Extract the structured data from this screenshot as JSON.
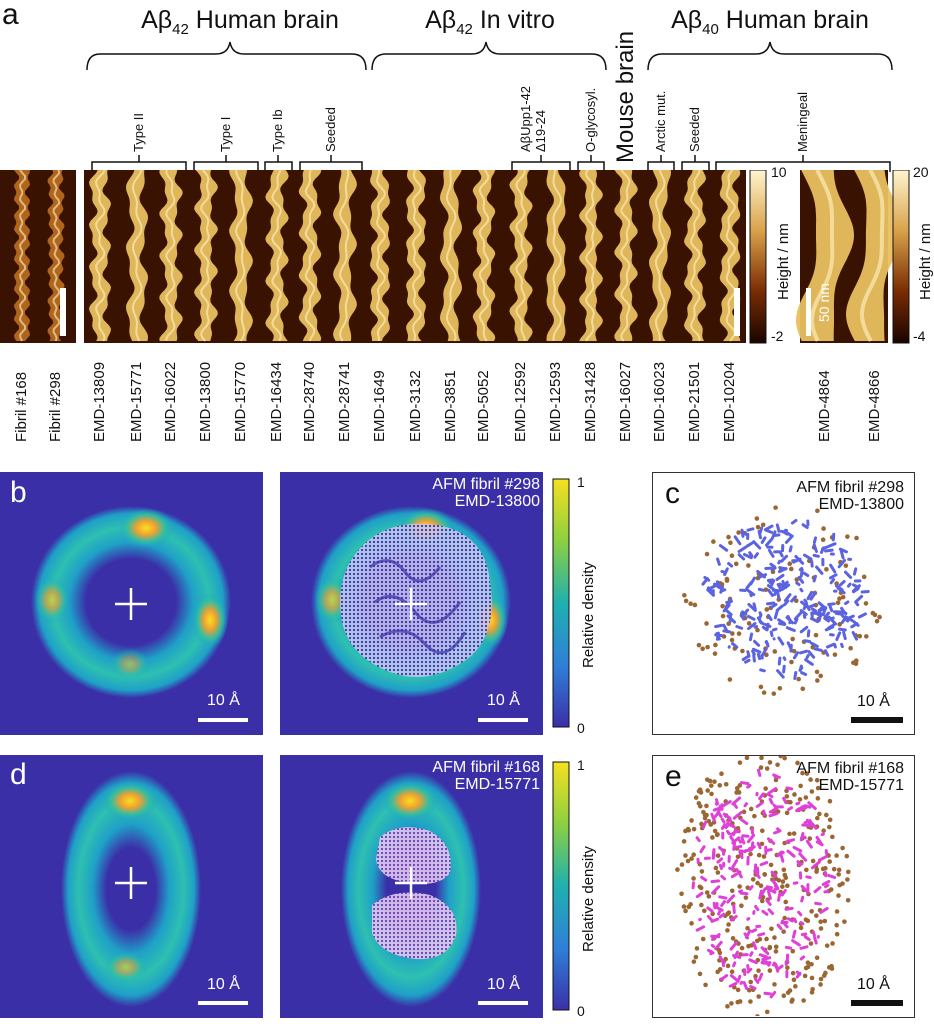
{
  "panel_letters": {
    "a": "a",
    "b": "b",
    "c": "c",
    "d": "d",
    "e": "e"
  },
  "groups": {
    "g1": {
      "pre": "Aβ",
      "sub": "42",
      "post": " Human brain"
    },
    "g2": {
      "pre": "Aβ",
      "sub": "42",
      "post": " In vitro"
    },
    "g3": "Mouse brain",
    "g4": {
      "pre": "Aβ",
      "sub": "40",
      "post": " Human brain"
    }
  },
  "subgroups": {
    "type2": "Type II",
    "type1": "Type I",
    "type1b": "Type Ib",
    "seeded1": "Seeded",
    "abupp_line1": "AβUpp1-42",
    "abupp_line2": "Δ19-24",
    "oglyc": "O-glycosyl.",
    "arctic": "Arctic mut.",
    "seeded2": "Seeded",
    "meningeal": "Meningeal"
  },
  "strip_labels": [
    "Fibril #168",
    "Fibril #298",
    "EMD-13809",
    "EMD-15771",
    "EMD-16022",
    "EMD-13800",
    "EMD-15770",
    "EMD-16434",
    "EMD-28740",
    "EMD-28741",
    "EMD-1649",
    "EMD-3132",
    "EMD-3851",
    "EMD-5052",
    "EMD-12592",
    "EMD-12593",
    "EMD-31428",
    "EMD-16027",
    "EMD-16023",
    "EMD-21501",
    "EMD-10204",
    "EMD-4864",
    "EMD-4866"
  ],
  "height_bar1": {
    "label": "Height / nm",
    "max": "10",
    "min": "-2"
  },
  "height_bar2": {
    "label": "Height / nm",
    "max": "20",
    "min": "-4"
  },
  "scale_50nm": "50 nm",
  "density_bar": {
    "label": "Relative density",
    "max": "1",
    "min": "0"
  },
  "scale_10A": "10 Å",
  "ann_b": {
    "line1": "AFM fibril #298",
    "line2": "EMD-13800"
  },
  "ann_c": {
    "line1": "AFM fibril #298",
    "line2": "EMD-13800"
  },
  "ann_d": {
    "line1": "AFM fibril #168",
    "line2": "EMD-15771"
  },
  "ann_e": {
    "line1": "AFM fibril #168",
    "line2": "EMD-15771"
  },
  "colors": {
    "afm_dark": "#2a0800",
    "afm_mid": "#8a3a05",
    "afm_light": "#f2d98a",
    "density_low": "#3b2fa8",
    "density_mid": "#1fa0c8",
    "density_high": "#f6e020",
    "atom_brown": "#9a6632",
    "atom_magenta": "#e040d8",
    "atom_blue": "#5c63e0"
  }
}
